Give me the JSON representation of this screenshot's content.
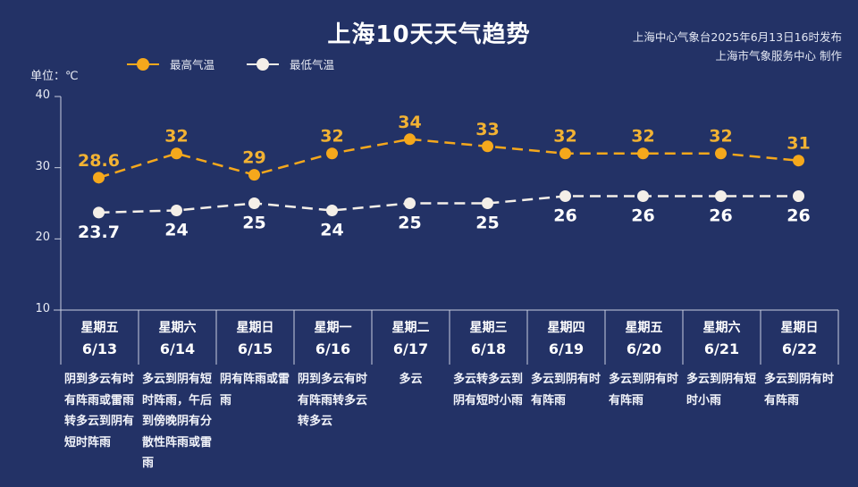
{
  "header": {
    "title": "上海10天天气趋势",
    "credit_line1": "上海中心气象台2025年6月13日16时发布",
    "credit_line2": "上海市气象服务中心 制作",
    "unit_label": "单位：℃"
  },
  "legend": [
    {
      "label": "最高气温",
      "color": "#f5a81c",
      "icon": "line-dot-orange"
    },
    {
      "label": "最低气温",
      "color": "#f4efe8",
      "icon": "line-dot-white"
    }
  ],
  "colors": {
    "background": "#233266",
    "high": "#f5a81c",
    "high_label": "#f2b233",
    "low": "#f4efe8",
    "axis": "#c9cfe0"
  },
  "chart_data": {
    "type": "line",
    "title": "上海10天天气趋势",
    "xlabel": "",
    "ylabel": "单位：℃",
    "ylim": [
      10,
      40
    ],
    "yticks": [
      10,
      20,
      30,
      40
    ],
    "grid": false,
    "legend_position": "top",
    "categories": [
      "星期五 6/13",
      "星期六 6/14",
      "星期日 6/15",
      "星期一 6/16",
      "星期二 6/17",
      "星期三 6/18",
      "星期四 6/19",
      "星期五 6/20",
      "星期六 6/21",
      "星期日 6/22"
    ],
    "series": [
      {
        "name": "最高气温",
        "values": [
          28.6,
          32,
          29,
          32,
          34,
          33,
          32,
          32,
          32,
          31
        ],
        "labels": [
          "28.6",
          "32",
          "29",
          "32",
          "34",
          "33",
          "32",
          "32",
          "32",
          "31"
        ],
        "style": "dashed",
        "color": "#f5a81c"
      },
      {
        "name": "最低气温",
        "values": [
          23.7,
          24,
          25,
          24,
          25,
          25,
          26,
          26,
          26,
          26
        ],
        "labels": [
          "23.7",
          "24",
          "25",
          "24",
          "25",
          "25",
          "26",
          "26",
          "26",
          "26"
        ],
        "style": "dashed",
        "color": "#f4efe8"
      }
    ]
  },
  "days": [
    {
      "weekday": "星期五",
      "date": "6/13",
      "desc": "阴到多云有时有阵雨或雷雨转多云到阴有短时阵雨"
    },
    {
      "weekday": "星期六",
      "date": "6/14",
      "desc": "多云到阴有短时阵雨，午后到傍晚阴有分散性阵雨或雷雨"
    },
    {
      "weekday": "星期日",
      "date": "6/15",
      "desc": "阴有阵雨或雷雨"
    },
    {
      "weekday": "星期一",
      "date": "6/16",
      "desc": "阴到多云有时有阵雨转多云转多云"
    },
    {
      "weekday": "星期二",
      "date": "6/17",
      "desc": "多云"
    },
    {
      "weekday": "星期三",
      "date": "6/18",
      "desc": "多云转多云到阴有短时小雨"
    },
    {
      "weekday": "星期四",
      "date": "6/19",
      "desc": "多云到阴有时有阵雨"
    },
    {
      "weekday": "星期五",
      "date": "6/20",
      "desc": "多云到阴有时有阵雨"
    },
    {
      "weekday": "星期六",
      "date": "6/21",
      "desc": "多云到阴有短时小雨"
    },
    {
      "weekday": "星期日",
      "date": "6/22",
      "desc": "多云到阴有时有阵雨"
    }
  ]
}
